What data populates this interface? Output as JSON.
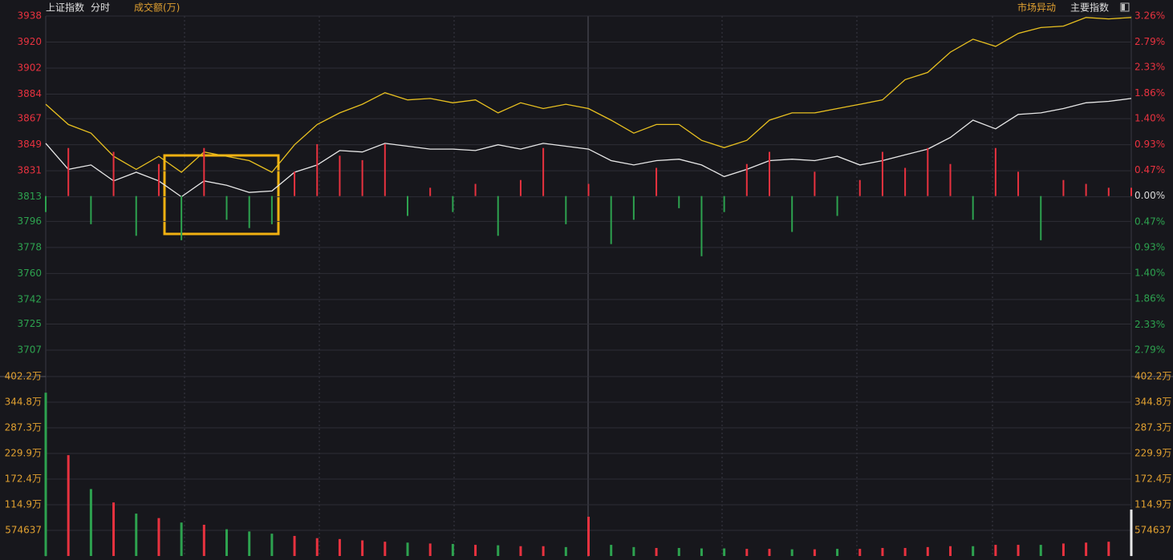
{
  "header": {
    "title": "上证指数",
    "mode": "分时",
    "indicator": "成交额(万)",
    "market_alert": "市场异动",
    "main_index": "主要指数"
  },
  "chart_data": [
    {
      "type": "line",
      "ylim": [
        3707,
        3938
      ],
      "yticks": [
        3938,
        3920,
        3902,
        3884,
        3867,
        3849,
        3831,
        3813,
        3796,
        3778,
        3760,
        3742,
        3725,
        3707
      ],
      "y2lim": [
        -2.79,
        3.26
      ],
      "y2ticks": [
        {
          "value": 3.26,
          "label": "3.26%"
        },
        {
          "value": 2.79,
          "label": "2.79%"
        },
        {
          "value": 2.33,
          "label": "2.33%"
        },
        {
          "value": 1.86,
          "label": "1.86%"
        },
        {
          "value": 1.4,
          "label": "1.40%"
        },
        {
          "value": 0.93,
          "label": "0.93%"
        },
        {
          "value": 0.47,
          "label": "0.47%"
        },
        {
          "value": 0,
          "label": "0.00%"
        },
        {
          "value": -0.47,
          "label": "0.47%"
        },
        {
          "value": -0.93,
          "label": "0.93%"
        },
        {
          "value": -1.4,
          "label": "1.40%"
        },
        {
          "value": -1.86,
          "label": "1.86%"
        },
        {
          "value": -2.33,
          "label": "2.33%"
        },
        {
          "value": -2.79,
          "label": "2.79%"
        }
      ],
      "up_color": "#e8323f",
      "down_color": "#2da24f",
      "flat_color": "#d8d8d8",
      "series": [
        {
          "color": "#e8e8e8",
          "values": [
            3850,
            3832,
            3835,
            3824,
            3830,
            3824,
            3813,
            3824,
            3821,
            3816,
            3817,
            3830,
            3835,
            3845,
            3844,
            3850,
            3848,
            3846,
            3846,
            3845,
            3849,
            3846,
            3850,
            3848,
            3846,
            3838,
            3835,
            3838,
            3839,
            3835,
            3827,
            3832,
            3838,
            3839,
            3838,
            3841,
            3835,
            3838,
            3842,
            3846,
            3854,
            3866,
            3860,
            3870,
            3871,
            3874,
            3878,
            3879,
            3881
          ]
        },
        {
          "color": "#e8c020",
          "values": [
            3877,
            3863,
            3857,
            3841,
            3832,
            3841,
            3830,
            3844,
            3841,
            3838,
            3830,
            3849,
            3863,
            3871,
            3877,
            3885,
            3880,
            3881,
            3878,
            3880,
            3871,
            3878,
            3874,
            3877,
            3874,
            3866,
            3857,
            3863,
            3863,
            3852,
            3847,
            3852,
            3866,
            3871,
            3871,
            3874,
            3877,
            3880,
            3894,
            3899,
            3913,
            3922,
            3917,
            3926,
            3930,
            3931,
            3937,
            3936,
            3937
          ]
        },
        {
          "type": "bar",
          "axis": "y2",
          "values": [
            -0.29,
            0.87,
            -0.51,
            0.8,
            -0.72,
            0.58,
            -0.8,
            0.87,
            -0.43,
            -0.58,
            -0.51,
            0.44,
            0.94,
            0.73,
            0.65,
            0.94,
            -0.36,
            0.15,
            -0.29,
            0.22,
            -0.72,
            0.29,
            0.87,
            -0.51,
            0.22,
            -0.87,
            -0.43,
            0.51,
            -0.22,
            -1.09,
            -0.29,
            0.58,
            0.8,
            -0.65,
            0.44,
            -0.36,
            0.29,
            0.8,
            0.51,
            0.87,
            0.58,
            -0.43,
            0.87,
            0.44,
            -0.8,
            0.29,
            0.22,
            0.15,
            0.15
          ]
        }
      ]
    },
    {
      "type": "bar",
      "color": "#e0a030",
      "up_color": "#e8323f",
      "down_color": "#2da24f",
      "ylim": [
        0,
        402.2
      ],
      "yticks": [
        {
          "value": 402.2,
          "label": "402.2万"
        },
        {
          "value": 344.8,
          "label": "344.8万"
        },
        {
          "value": 287.3,
          "label": "287.3万"
        },
        {
          "value": 229.9,
          "label": "229.9万"
        },
        {
          "value": 172.4,
          "label": "172.4万"
        },
        {
          "value": 114.9,
          "label": "114.9万"
        },
        {
          "value": 57.4637,
          "label": "574637"
        }
      ],
      "values": [
        366,
        226,
        150,
        120,
        95,
        85,
        75,
        70,
        60,
        55,
        50,
        45,
        40,
        38,
        35,
        32,
        30,
        28,
        27,
        25,
        24,
        22,
        22,
        20,
        88,
        25,
        20,
        18,
        18,
        17,
        17,
        16,
        16,
        15,
        15,
        16,
        16,
        18,
        18,
        20,
        22,
        22,
        25,
        25,
        25,
        28,
        30,
        32,
        104
      ]
    }
  ]
}
